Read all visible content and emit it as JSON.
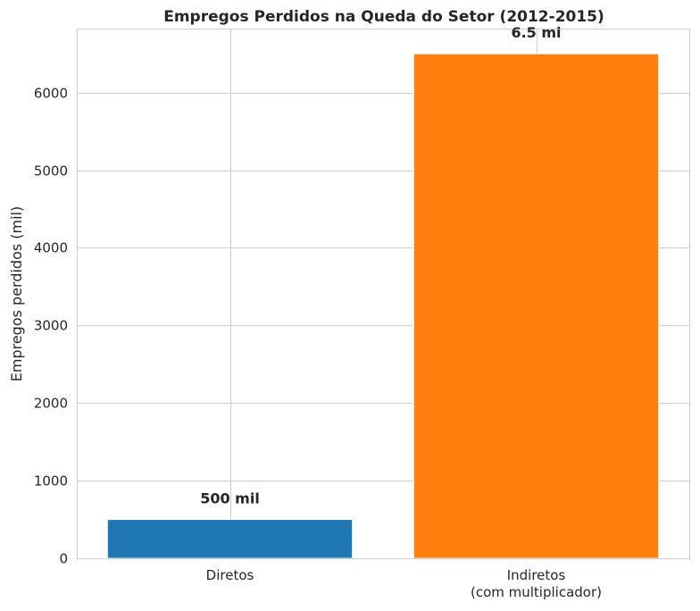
{
  "chart_data": {
    "type": "bar",
    "title": "Empregos Perdidos na Queda do Setor (2012-2015)",
    "xlabel": "",
    "ylabel": "Empregos perdidos (mil)",
    "categories": [
      [
        "Diretos"
      ],
      [
        "Indiretos",
        "(com multiplicador)"
      ]
    ],
    "values": [
      500,
      6500
    ],
    "colors": [
      "#1f77b4",
      "#ff7f0e"
    ],
    "data_labels": [
      "500 mil",
      "6.5 mi"
    ],
    "ylim": [
      0,
      6825
    ],
    "yticks": [
      0,
      1000,
      2000,
      3000,
      4000,
      5000,
      6000
    ],
    "grid": true
  }
}
